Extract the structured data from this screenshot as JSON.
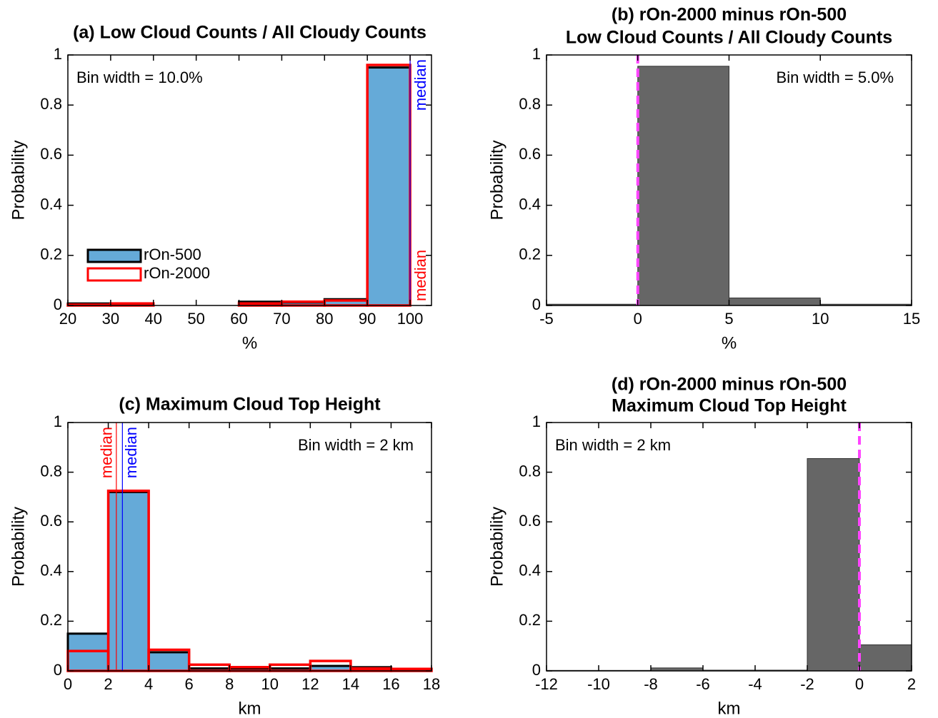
{
  "chart_data": [
    {
      "type": "histogram",
      "title": [
        "(a) Low Cloud Counts / All Cloudy Counts"
      ],
      "xlabel": "%",
      "ylabel": "Probability",
      "annotation": "Bin width = 10.0%",
      "bins": [
        20,
        30,
        40,
        50,
        60,
        70,
        80,
        90,
        100
      ],
      "series": [
        {
          "name": "rOn-500",
          "color": "#65aad8",
          "edgecolor": "#000000",
          "values": [
            0.008,
            0.002,
            0,
            0,
            0.015,
            0.012,
            0.025,
            0.95
          ]
        },
        {
          "name": "rOn-2000",
          "color": "none",
          "edgecolor": "#ff0000",
          "values": [
            0.003,
            0.008,
            0,
            0,
            0.008,
            0.015,
            0.02,
            0.96
          ]
        }
      ],
      "medians": [
        {
          "label": "median",
          "color": "#ff0000",
          "value": 100
        },
        {
          "label": "median",
          "color": "#0000ff",
          "value": 100
        }
      ],
      "legend": "lower left",
      "xlim": [
        20,
        105
      ],
      "xticks": [
        20,
        30,
        40,
        50,
        60,
        70,
        80,
        90,
        100
      ],
      "ylim": [
        0,
        1
      ],
      "yticks": [
        0,
        0.2,
        0.4,
        0.6,
        0.8,
        1
      ]
    },
    {
      "type": "histogram",
      "title": [
        "(b) rOn-2000 minus rOn-500",
        "Low Cloud Counts / All Cloudy Counts"
      ],
      "xlabel": "%",
      "ylabel": "Probability",
      "annotation": "Bin width = 5.0%",
      "bins": [
        -5,
        0,
        5,
        10,
        15
      ],
      "series": [
        {
          "color": "#666666",
          "edgecolor": "#333333",
          "values": [
            0.005,
            0.955,
            0.03,
            0.005
          ]
        }
      ],
      "ref_line": {
        "value": 0,
        "color": "#ff44ff"
      },
      "xlim": [
        -5,
        15
      ],
      "xticks": [
        -5,
        0,
        5,
        10,
        15
      ],
      "ylim": [
        0,
        1
      ],
      "yticks": [
        0,
        0.2,
        0.4,
        0.6,
        0.8,
        1
      ]
    },
    {
      "type": "histogram",
      "title": [
        "(c) Maximum Cloud Top Height"
      ],
      "xlabel": "km",
      "ylabel": "Probability",
      "annotation": "Bin width = 2 km",
      "bins": [
        0,
        2,
        4,
        6,
        8,
        10,
        12,
        14,
        16,
        18
      ],
      "series": [
        {
          "color": "#65aad8",
          "edgecolor": "#000000",
          "values": [
            0.15,
            0.72,
            0.075,
            0.01,
            0.01,
            0.01,
            0.02,
            0.015,
            0.005
          ]
        },
        {
          "color": "none",
          "edgecolor": "#ff0000",
          "values": [
            0.08,
            0.725,
            0.085,
            0.025,
            0.015,
            0.025,
            0.04,
            0.01,
            0.008
          ]
        }
      ],
      "medians": [
        {
          "label": "median",
          "color": "#ff0000",
          "value": 2.4
        },
        {
          "label": "median",
          "color": "#0000ff",
          "value": 2.7
        }
      ],
      "xlim": [
        0,
        18
      ],
      "xticks": [
        0,
        2,
        4,
        6,
        8,
        10,
        12,
        14,
        16,
        18
      ],
      "ylim": [
        0,
        1
      ],
      "yticks": [
        0,
        0.2,
        0.4,
        0.6,
        0.8,
        1
      ]
    },
    {
      "type": "histogram",
      "title": [
        "(d) rOn-2000 minus rOn-500",
        "Maximum Cloud Top Height"
      ],
      "xlabel": "km",
      "ylabel": "Probability",
      "annotation": "Bin width = 2 km",
      "bins": [
        -12,
        -10,
        -8,
        -6,
        -4,
        -2,
        0,
        2
      ],
      "series": [
        {
          "color": "#666666",
          "edgecolor": "#333333",
          "values": [
            0.002,
            0.002,
            0.012,
            0.003,
            0.003,
            0.855,
            0.105
          ]
        }
      ],
      "ref_line": {
        "value": 0,
        "color": "#ff44ff"
      },
      "xlim": [
        -12,
        2
      ],
      "xticks": [
        -12,
        -10,
        -8,
        -6,
        -4,
        -2,
        0,
        2
      ],
      "ylim": [
        0,
        1
      ],
      "yticks": [
        0,
        0.2,
        0.4,
        0.6,
        0.8,
        1
      ]
    }
  ]
}
